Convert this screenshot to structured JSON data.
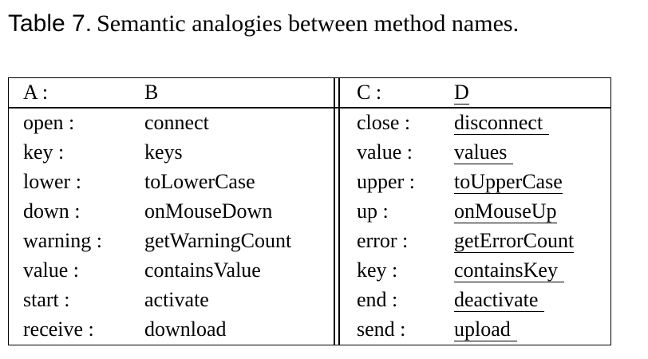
{
  "caption": {
    "label": "Table 7.",
    "text": "Semantic analogies between method names."
  },
  "header": {
    "a": "A :",
    "b": "B",
    "c": "C :",
    "d": "D"
  },
  "rows": [
    {
      "a": "open :",
      "b": "connect",
      "c": "close :",
      "d": "disconnect"
    },
    {
      "a": "key :",
      "b": "keys",
      "c": "value :",
      "d": "values"
    },
    {
      "a": "lower :",
      "b": "toLowerCase",
      "c": "upper :",
      "d": "toUpperCase"
    },
    {
      "a": "down :",
      "b": "onMouseDown",
      "c": "up :",
      "d": "onMouseUp"
    },
    {
      "a": "warning :",
      "b": "getWarningCount",
      "c": "error :",
      "d": "getErrorCount"
    },
    {
      "a": "value :",
      "b": "containsValue",
      "c": "key :",
      "d": "containsKey"
    },
    {
      "a": "start :",
      "b": "activate",
      "c": "end :",
      "d": "deactivate"
    },
    {
      "a": "receive :",
      "b": "download",
      "c": "send :",
      "d": "upload"
    }
  ]
}
